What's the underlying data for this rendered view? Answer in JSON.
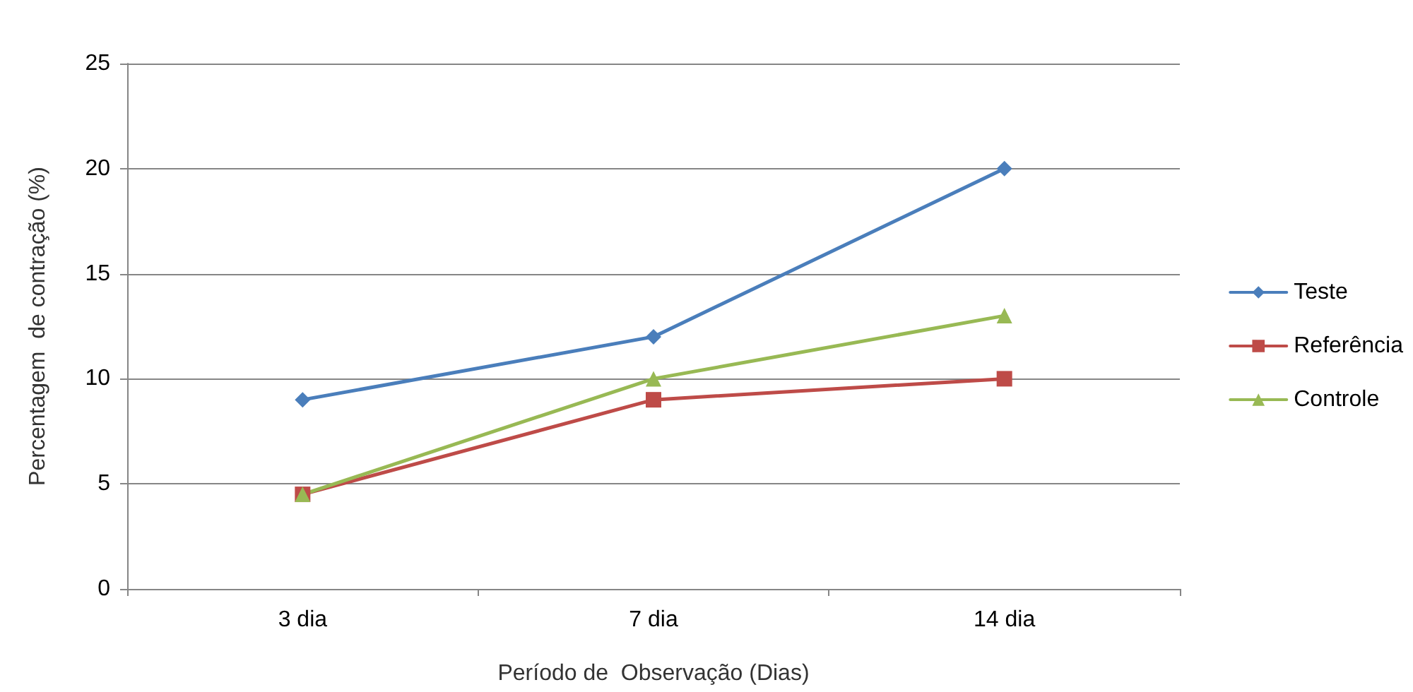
{
  "chart_data": {
    "type": "line",
    "xlabel": "Período de  Observação (Dias)",
    "ylabel": "Percentagem  de contração (%)",
    "categories": [
      "3 dia",
      "7 dia",
      "14 dia"
    ],
    "series": [
      {
        "name": "Teste",
        "color": "#4a7ebb",
        "marker": "diamond",
        "values": [
          9,
          12,
          20
        ]
      },
      {
        "name": "Referência",
        "color": "#be4b48",
        "marker": "square",
        "values": [
          4.5,
          9,
          10
        ]
      },
      {
        "name": "Controle",
        "color": "#98b954",
        "marker": "triangle",
        "values": [
          4.5,
          10,
          13
        ]
      }
    ],
    "ylim": [
      0,
      25
    ],
    "yticks": [
      0,
      5,
      10,
      15,
      20,
      25
    ],
    "grid": "y",
    "legend": "right",
    "line_style": "solid"
  }
}
